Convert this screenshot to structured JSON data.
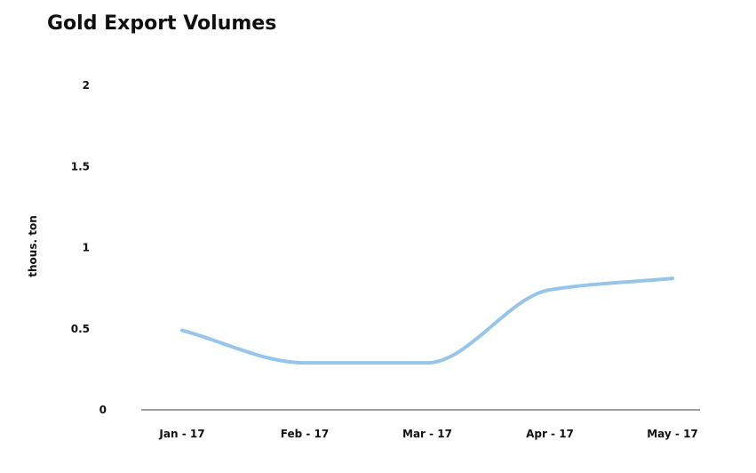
{
  "title": "Gold Export Volumes",
  "chart_data": {
    "type": "line",
    "title": "Gold Export Volumes",
    "xlabel": "",
    "ylabel": "thous. ton",
    "categories": [
      "Jan - 17",
      "Feb - 17",
      "Mar - 17",
      "Apr - 17",
      "May - 17"
    ],
    "series": [
      {
        "values": [
          0.49,
          0.29,
          0.29,
          0.74,
          0.81
        ],
        "color": "#95c5ea"
      }
    ],
    "ylim": [
      0,
      2
    ],
    "yticks": [
      {
        "value": 0,
        "label": "0"
      },
      {
        "value": 0.5,
        "label": "0.5"
      },
      {
        "value": 1,
        "label": "1"
      },
      {
        "value": 1.5,
        "label": "1.5"
      },
      {
        "value": 2,
        "label": "2"
      }
    ],
    "grid": false,
    "smooth": true,
    "axis_color": "#9e9e9e"
  }
}
